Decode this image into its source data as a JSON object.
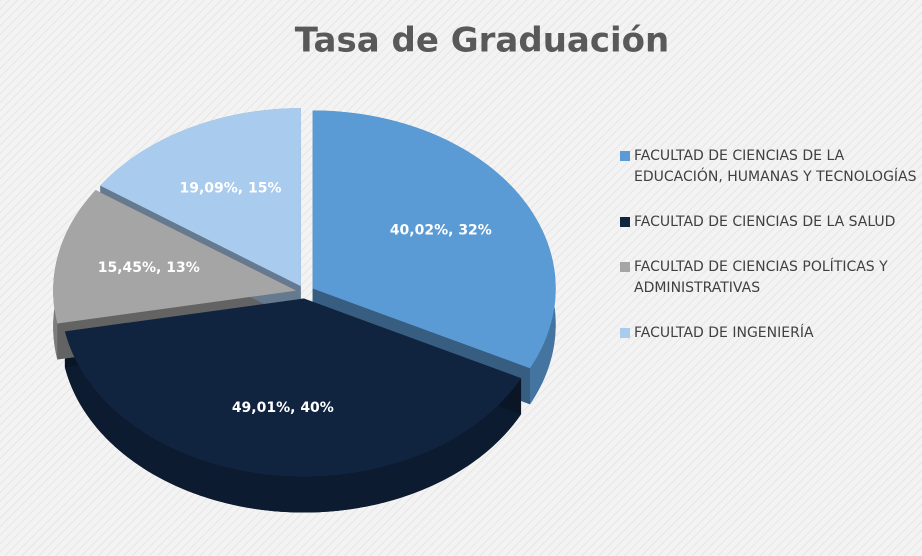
{
  "chart_data": {
    "type": "pie3d",
    "title": "Tasa de Graduación",
    "categories": [
      "FACULTAD DE CIENCIAS DE LA EDUCACIÓN, HUMANAS Y TECNOLOGÍAS",
      "FACULTAD DE CIENCIAS DE LA SALUD",
      "FACULTAD DE CIENCIAS POLÍTICAS Y ADMINISTRATIVAS",
      "FACULTAD DE INGENIERÍA"
    ],
    "values": [
      40.02,
      49.01,
      15.45,
      19.09
    ],
    "value_labels": [
      "40,02%, 32%",
      "49,01%, 40%",
      "15,45%, 13%",
      "19,09%, 15%"
    ],
    "colors": [
      "#5b9bd5",
      "#10243f",
      "#a5a5a5",
      "#a9cbee"
    ],
    "legend": "right"
  }
}
